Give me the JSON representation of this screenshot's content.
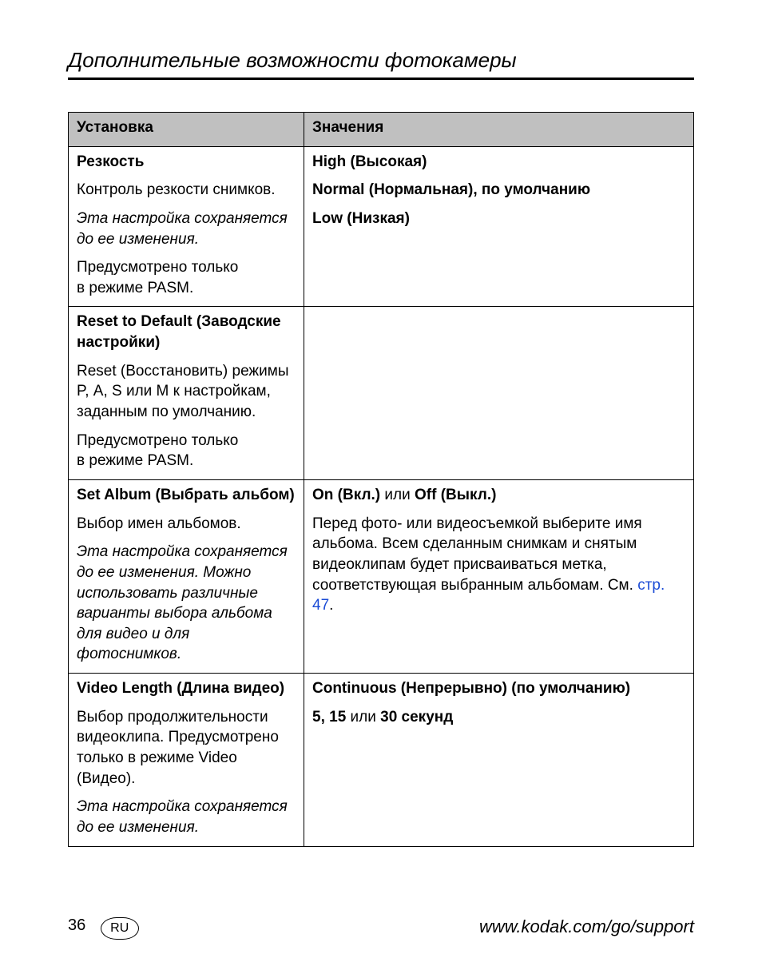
{
  "header": {
    "title": "Дополнительные возможности фотокамеры"
  },
  "table": {
    "head": {
      "c1": "Установка",
      "c2": "Значения"
    },
    "rows": [
      {
        "c1": {
          "p1_b": "Резкость",
          "p2": "Контроль резкости снимков.",
          "p3_i": "Эта настройка сохраняется до ее изменения.",
          "p4": "Предусмотрено только в режиме PASM."
        },
        "c2": {
          "p1_b": "High (Высокая)",
          "p2_b": "Normal (Нормальная), по умолчанию",
          "p3_b": "Low (Низкая)"
        }
      },
      {
        "c1": {
          "p1_b": "Reset to Default (Заводские настройки)",
          "p2": "Reset (Восстановить) режимы P, A, S или M к настройкам, заданным по умолчанию.",
          "p3": "Предусмотрено только в режиме PASM."
        },
        "c2": {}
      },
      {
        "c1": {
          "p1_b": "Set Album (Выбрать альбом)",
          "p2": "Выбор имен альбомов.",
          "p3_i": "Эта настройка сохраняется до ее изменения. Можно использовать различные варианты выбора альбома для видео и для фотоснимков."
        },
        "c2": {
          "p1_pre": "On (Вкл.)",
          "p1_mid": " или ",
          "p1_post": "Off (Выкл.)",
          "p2_pre": "Перед фото- или видеосъемкой выберите имя альбома. Всем сделанным снимкам и снятым видеоклипам будет присваиваться метка, соответствующая выбранным альбомам. См. ",
          "p2_link": "стр. 47",
          "p2_post": "."
        }
      },
      {
        "c1": {
          "p1_b": "Video Length (Длина видео)",
          "p2": "Выбор продолжительности видеоклипа. Предусмотрено только в режиме Video (Видео).",
          "p3_i": "Эта настройка сохраняется до ее изменения."
        },
        "c2": {
          "p1_b": "Continuous (Непрерывно) (по умолчанию)",
          "p2_pre": "5, 15",
          "p2_mid": " или ",
          "p2_post": "30 секунд"
        }
      }
    ]
  },
  "footer": {
    "page": "36",
    "lang_badge": "RU",
    "url": "www.kodak.com/go/support"
  }
}
